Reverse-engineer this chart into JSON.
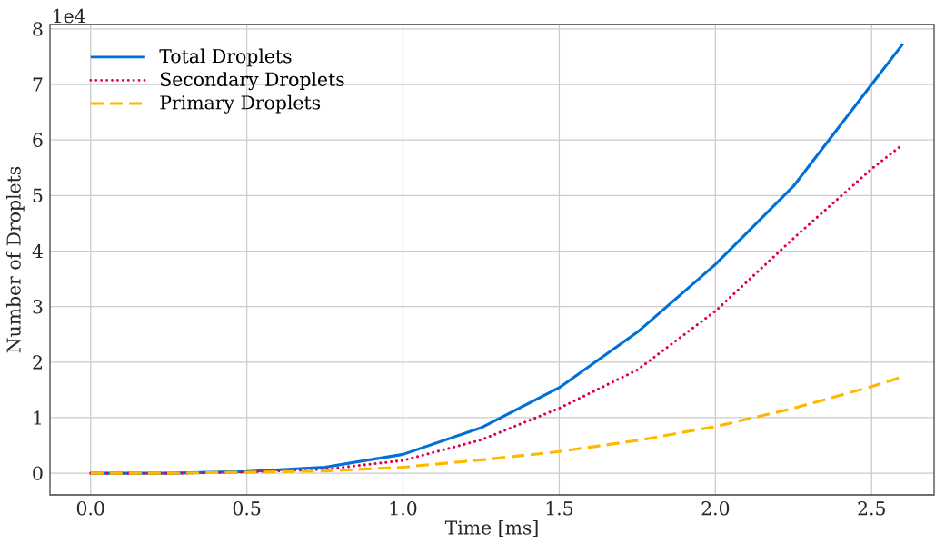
{
  "chart_data": {
    "type": "line",
    "xlabel": "Time [ms]",
    "ylabel": "Number of Droplets",
    "annotations": [
      "1e4"
    ],
    "x": [
      0,
      0.25,
      0.5,
      0.75,
      1.0,
      1.25,
      1.5,
      1.75,
      2.0,
      2.25,
      2.5,
      2.6
    ],
    "series": [
      {
        "name": "Total Droplets",
        "color": "#0070d8",
        "line_style": "solid",
        "values": [
          0,
          0,
          0.03,
          0.11,
          0.34,
          0.82,
          1.54,
          2.54,
          3.76,
          5.17,
          7.0,
          7.73
        ]
      },
      {
        "name": "Secondary Droplets",
        "color": "#e0004d",
        "line_style": "dotted",
        "values": [
          0,
          0,
          0.02,
          0.07,
          0.23,
          0.6,
          1.17,
          1.86,
          2.92,
          4.23,
          5.48,
          5.92
        ]
      },
      {
        "name": "Primary Droplets",
        "color": "#ffb800",
        "line_style": "dashed",
        "values": [
          0,
          0,
          0.02,
          0.04,
          0.11,
          0.24,
          0.39,
          0.59,
          0.84,
          1.17,
          1.56,
          1.74
        ]
      }
    ],
    "xlim": [
      -0.13,
      2.7
    ],
    "ylim": [
      -0.39,
      8.08
    ],
    "xticks": [
      {
        "value": 0,
        "label": "0.0"
      },
      {
        "value": 0.5,
        "label": "0.5"
      },
      {
        "value": 1.0,
        "label": "1.0"
      },
      {
        "value": 1.5,
        "label": "1.5"
      },
      {
        "value": 2.0,
        "label": "2.0"
      },
      {
        "value": 2.5,
        "label": "2.5"
      }
    ],
    "yticks": [
      0,
      1,
      2,
      3,
      4,
      5,
      6,
      7,
      8
    ],
    "grid": true,
    "legend": "top left",
    "marker": "none"
  }
}
